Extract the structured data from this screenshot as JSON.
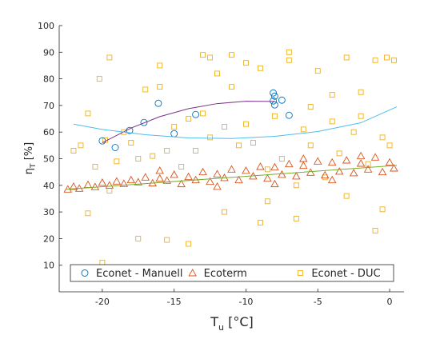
{
  "chart_data": {
    "type": "scatter",
    "xlabel": [
      "T",
      "u",
      " [°C]"
    ],
    "ylabel": [
      "η",
      "T",
      " [%]"
    ],
    "xlim": [
      -23,
      1
    ],
    "xticks": [
      -20,
      -15,
      -10,
      -5,
      0
    ],
    "ylim": [
      0,
      100
    ],
    "yticks": [
      10,
      20,
      30,
      40,
      50,
      60,
      70,
      80,
      90,
      100
    ],
    "legend": "bottom",
    "series": [
      {
        "name": "Econet - Manuell",
        "marker": "circle",
        "color": "#0072BD",
        "x": [
          -20,
          -19.1,
          -18.1,
          -17.1,
          -16.1,
          -15,
          -13.5,
          -8.1,
          -8,
          -8.1,
          -8,
          -7.5,
          -7
        ],
        "values": [
          56.7,
          54.2,
          60.6,
          63.6,
          70.8,
          59.4,
          66.6,
          74.7,
          73.5,
          71.7,
          70.2,
          72,
          66.3
        ]
      },
      {
        "name": "Ecoterm",
        "marker": "triangle",
        "color": "#D95319",
        "x": [
          -22.4,
          -22,
          -21.6,
          -21,
          -20.5,
          -20,
          -19.5,
          -19,
          -18.5,
          -18,
          -17.5,
          -17,
          -16.5,
          -16,
          -15.5,
          -15,
          -14.5,
          -14,
          -13.5,
          -13,
          -12.5,
          -12,
          -11.5,
          -11,
          -10.5,
          -10,
          -9.5,
          -9,
          -8.5,
          -8,
          -7.5,
          -7,
          -6.5,
          -6,
          -5.5,
          -5,
          -4.5,
          -4,
          -3.5,
          -3,
          -2.5,
          -2,
          -1.5,
          -1,
          -0.5,
          0,
          0.3,
          -12,
          -8,
          -4,
          -16,
          -6,
          -2
        ],
        "values": [
          38.5,
          39.5,
          38.8,
          40.2,
          39.4,
          41,
          40,
          41.5,
          40.6,
          42,
          41.2,
          43,
          40.8,
          42.6,
          41.8,
          44,
          40.5,
          43.2,
          42,
          45,
          41.4,
          44.2,
          42.8,
          46,
          42,
          45.5,
          43.4,
          47,
          42.6,
          46.8,
          44,
          48,
          43.4,
          47.4,
          44.8,
          49,
          43.8,
          48.6,
          45.2,
          49.4,
          44.6,
          48.2,
          46,
          50.5,
          45,
          48.6,
          46.4,
          39.5,
          40.5,
          42,
          45.5,
          50,
          51
        ]
      },
      {
        "name": "Econet - DUC",
        "marker": "square",
        "color": "#EDB120",
        "x": [
          -22,
          -21.5,
          -21,
          -20.5,
          -20.2,
          -19.8,
          -19.5,
          -19,
          -18.5,
          -18,
          -17.5,
          -17,
          -16.5,
          -16,
          -15.5,
          -15,
          -14.5,
          -14,
          -13.5,
          -13,
          -12.5,
          -12,
          -11.5,
          -11,
          -10.5,
          -10,
          -9.5,
          -9,
          -8.5,
          -8,
          -7.5,
          -7,
          -6.5,
          -6,
          -5.5,
          -5,
          -4.5,
          -4,
          -3.5,
          -3,
          -2.5,
          -2,
          -1.5,
          -1,
          -0.5,
          0,
          0.3,
          -21,
          -19.5,
          -15.5,
          -14,
          -11.5,
          -9,
          -6.5,
          -3,
          -1,
          -0.5,
          -12.5,
          -10,
          -7,
          -4,
          -2,
          -16,
          -13,
          -5.5,
          -20,
          -17.5,
          -0.2,
          -11,
          -8.5
        ],
        "values": [
          53,
          55,
          67,
          47,
          80,
          57,
          88,
          49,
          60,
          56,
          50,
          76,
          51,
          85,
          53,
          62,
          47,
          65,
          53,
          67,
          58,
          82,
          62,
          89,
          55,
          63,
          56,
          84,
          46,
          66,
          50,
          87,
          40,
          61,
          55,
          83,
          43,
          64,
          52,
          88,
          60,
          66,
          48,
          87,
          58,
          55,
          87,
          29.5,
          38,
          19.5,
          18,
          30,
          26,
          27.5,
          36,
          23,
          31,
          88,
          86,
          90,
          74,
          75,
          77,
          89,
          69.5,
          11,
          20,
          88,
          77,
          34
        ]
      },
      {
        "color": "#7E2F8E",
        "mode": "line",
        "x": [
          -20,
          -18,
          -16,
          -14,
          -12,
          -10,
          -8
        ],
        "values": [
          56,
          61.5,
          65.8,
          68.8,
          70.7,
          71.6,
          71.5
        ]
      },
      {
        "color": "#4DBEEE",
        "mode": "line",
        "x": [
          -22,
          -20,
          -17,
          -14,
          -11,
          -8,
          -5,
          -2,
          0.5
        ],
        "values": [
          63,
          61,
          59,
          57.8,
          57.6,
          58.4,
          60.2,
          63.5,
          69.5
        ]
      },
      {
        "color": "#77AC30",
        "mode": "line",
        "x": [
          -22.5,
          0.5
        ],
        "values": [
          38.5,
          47.5
        ]
      }
    ]
  }
}
